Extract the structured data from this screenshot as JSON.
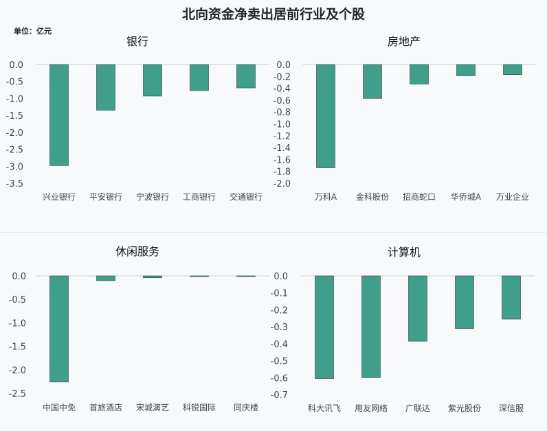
{
  "title": "北向资金净卖出居前行业及个股",
  "unit": "单位：亿元",
  "chart_data": [
    {
      "type": "bar",
      "title": "银行",
      "categories": [
        "兴业银行",
        "平安银行",
        "宁波银行",
        "工商银行",
        "交通银行"
      ],
      "values": [
        -2.98,
        -1.35,
        -0.93,
        -0.77,
        -0.69
      ],
      "ylim": [
        -3.5,
        0.0
      ],
      "yticks": [
        "0.0",
        "-0.5",
        "-1.0",
        "-1.5",
        "-2.0",
        "-2.5",
        "-3.0",
        "-3.5"
      ],
      "color": "#3f9f8a"
    },
    {
      "type": "bar",
      "title": "房地产",
      "categories": [
        "万科A",
        "金科股份",
        "招商蛇口",
        "华侨城A",
        "万业企业"
      ],
      "values": [
        -1.74,
        -0.57,
        -0.33,
        -0.19,
        -0.17
      ],
      "ylim": [
        -2.0,
        0.0
      ],
      "yticks": [
        "0.0",
        "-0.2",
        "-0.4",
        "-0.6",
        "-0.8",
        "-1.0",
        "-1.2",
        "-1.4",
        "-1.6",
        "-1.8",
        "-2.0"
      ],
      "color": "#3f9f8a"
    },
    {
      "type": "bar",
      "title": "休闲服务",
      "categories": [
        "中国中免",
        "首旅酒店",
        "宋城演艺",
        "科锐国际",
        "同庆楼"
      ],
      "values": [
        -2.26,
        -0.1,
        -0.04,
        -0.015,
        -0.015
      ],
      "ylim": [
        -2.5,
        0.0
      ],
      "yticks": [
        "0.0",
        "-0.5",
        "-1.0",
        "-1.5",
        "-2.0",
        "-2.5"
      ],
      "color": "#3f9f8a"
    },
    {
      "type": "bar",
      "title": "计算机",
      "categories": [
        "科大讯飞",
        "用友网络",
        "广联达",
        "紫光股份",
        "深信服"
      ],
      "values": [
        -0.605,
        -0.6,
        -0.385,
        -0.31,
        -0.255
      ],
      "ylim": [
        -0.7,
        0.0
      ],
      "yticks": [
        "0.0",
        "-0.1",
        "-0.2",
        "-0.3",
        "-0.4",
        "-0.5",
        "-0.6",
        "-0.7"
      ],
      "color": "#3f9f8a"
    }
  ]
}
